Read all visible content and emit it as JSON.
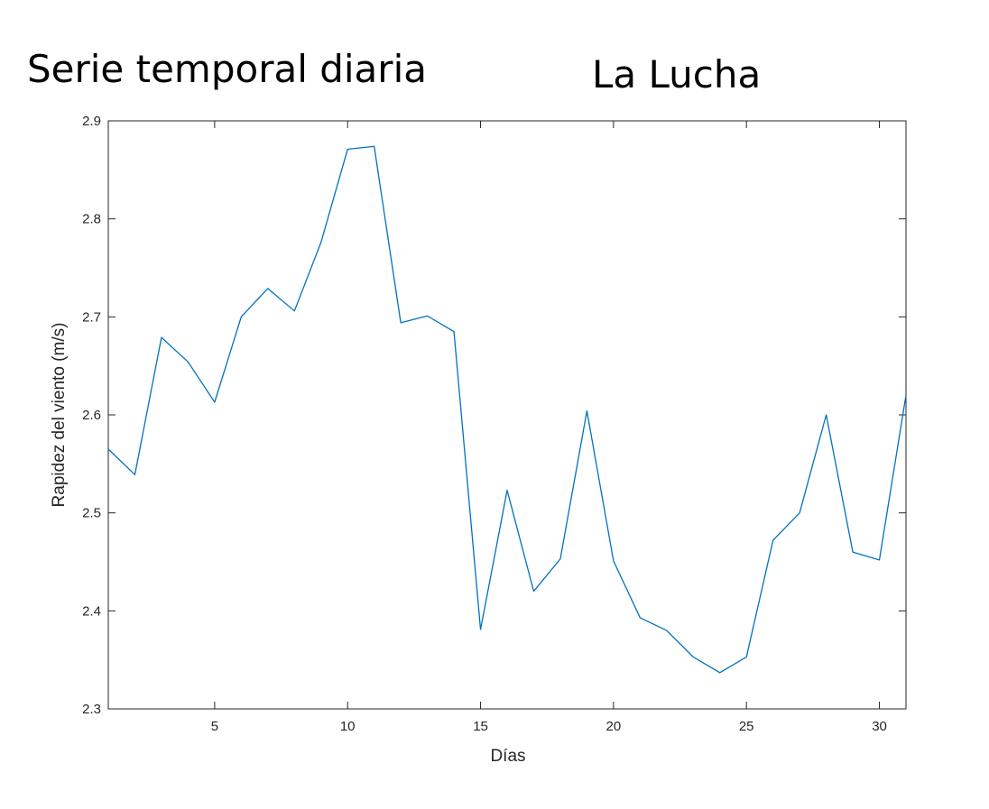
{
  "figure": {
    "title_left": "Serie temporal diaria",
    "title_right": "La Lucha"
  },
  "chart_data": {
    "type": "line",
    "xlabel": "Días",
    "ylabel": "Rapidez del viento (m/s)",
    "xlim": [
      1,
      31
    ],
    "ylim": [
      2.3,
      2.9
    ],
    "xticks": [
      5,
      10,
      15,
      20,
      25,
      30
    ],
    "xtick_labels": [
      "5",
      "10",
      "15",
      "20",
      "25",
      "30"
    ],
    "yticks": [
      2.3,
      2.4,
      2.5,
      2.6,
      2.7,
      2.8,
      2.9
    ],
    "ytick_labels": [
      "2.3",
      "2.4",
      "2.5",
      "2.6",
      "2.7",
      "2.8",
      "2.9"
    ],
    "grid": false,
    "series": [
      {
        "color": "#0072bd",
        "x": [
          1,
          2,
          3,
          4,
          5,
          6,
          7,
          8,
          9,
          10,
          11,
          12,
          13,
          14,
          15,
          16,
          17,
          18,
          19,
          20,
          21,
          22,
          23,
          24,
          25,
          26,
          27,
          28,
          29,
          30,
          31
        ],
        "values": [
          2.565,
          2.539,
          2.679,
          2.654,
          2.613,
          2.7,
          2.729,
          2.706,
          2.776,
          2.871,
          2.874,
          2.694,
          2.701,
          2.685,
          2.381,
          2.523,
          2.42,
          2.453,
          2.604,
          2.451,
          2.393,
          2.38,
          2.353,
          2.337,
          2.353,
          2.472,
          2.5,
          2.6,
          2.46,
          2.452,
          2.62
        ]
      }
    ]
  }
}
